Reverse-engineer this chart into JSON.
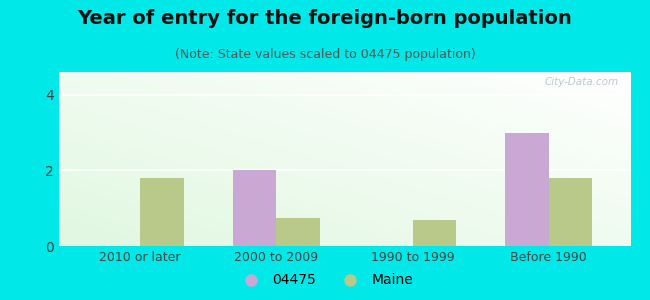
{
  "title": "Year of entry for the foreign-born population",
  "subtitle": "(Note: State values scaled to 04475 population)",
  "categories": [
    "2010 or later",
    "2000 to 2009",
    "1990 to 1999",
    "Before 1990"
  ],
  "values_04475": [
    0,
    2.0,
    0,
    3.0
  ],
  "values_maine": [
    1.8,
    0.75,
    0.7,
    1.8
  ],
  "color_04475": "#c9a8d4",
  "color_maine": "#b8c98a",
  "background_outer": "#00e8e8",
  "ylim": [
    0,
    4.6
  ],
  "yticks": [
    0,
    2,
    4
  ],
  "bar_width": 0.32,
  "legend_label_04475": "04475",
  "legend_label_maine": "Maine",
  "watermark": "City-Data.com",
  "title_fontsize": 14,
  "subtitle_fontsize": 9,
  "tick_fontsize": 9,
  "ytick_fontsize": 10
}
